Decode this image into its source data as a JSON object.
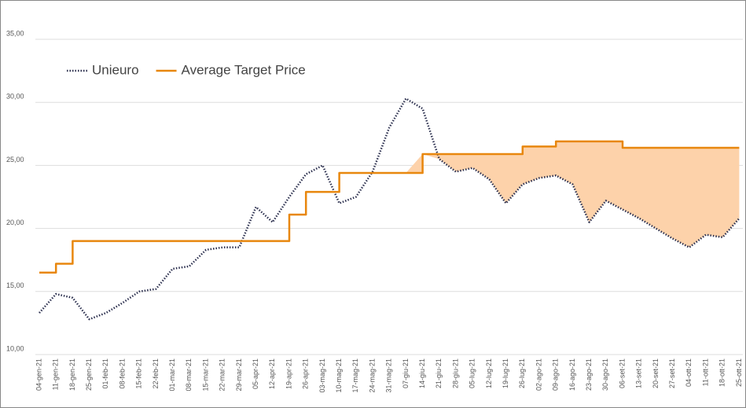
{
  "chart_data": {
    "type": "line",
    "categories": [
      "04-gen-21",
      "11-gen-21",
      "18-gen-21",
      "25-gen-21",
      "01-feb-21",
      "08-feb-21",
      "15-feb-21",
      "22-feb-21",
      "01-mar-21",
      "08-mar-21",
      "15-mar-21",
      "22-mar-21",
      "29-mar-21",
      "05-apr-21",
      "12-apr-21",
      "19-apr-21",
      "26-apr-21",
      "03-mag-21",
      "10-mag-21",
      "17-mag-21",
      "24-mag-21",
      "31-mag-21",
      "07-giu-21",
      "14-giu-21",
      "21-giu-21",
      "28-giu-21",
      "05-lug-21",
      "12-lug-21",
      "19-lug-21",
      "26-lug-21",
      "02-ago-21",
      "09-ago-21",
      "16-ago-21",
      "23-ago-21",
      "30-ago-21",
      "06-set-21",
      "13-set-21",
      "20-set-21",
      "27-set-21",
      "04-ott-21",
      "11-ott-21",
      "18-ott-21",
      "25-ott-21"
    ],
    "series": [
      {
        "name": "Unieuro",
        "color": "#2b2f4e",
        "style": "dotted",
        "values": [
          13.3,
          14.8,
          14.5,
          12.8,
          13.3,
          14.1,
          15.0,
          15.2,
          16.8,
          17.0,
          18.3,
          18.5,
          18.5,
          21.7,
          20.5,
          22.5,
          24.3,
          25.0,
          22.0,
          22.5,
          24.5,
          28.0,
          30.3,
          29.5,
          25.5,
          24.5,
          24.8,
          23.9,
          22.0,
          23.5,
          24.0,
          24.2,
          23.5,
          20.5,
          22.2,
          21.5,
          20.8,
          20.0,
          19.2,
          18.5,
          19.5,
          19.3,
          20.8
        ]
      },
      {
        "name": "Average Target Price",
        "color": "#e8870e",
        "style": "step",
        "values": [
          16.5,
          17.2,
          19.0,
          19.0,
          19.0,
          19.0,
          19.0,
          19.0,
          19.0,
          19.0,
          19.0,
          19.0,
          19.0,
          19.0,
          19.0,
          21.1,
          22.9,
          22.9,
          24.4,
          24.4,
          24.4,
          24.4,
          24.4,
          25.9,
          25.9,
          25.9,
          25.9,
          25.9,
          25.9,
          26.5,
          26.5,
          26.9,
          26.9,
          26.9,
          26.9,
          26.4,
          26.4,
          26.4,
          26.4,
          26.4,
          26.4,
          26.4,
          26.4
        ]
      }
    ],
    "fill_color": "#fdd2aa",
    "ylim": [
      10,
      35
    ],
    "yticks": [
      {
        "value": 10,
        "label": "10,00"
      },
      {
        "value": 15,
        "label": "15,00"
      },
      {
        "value": 20,
        "label": "20,00"
      },
      {
        "value": 25,
        "label": "25,00"
      },
      {
        "value": 30,
        "label": "30,00"
      },
      {
        "value": 35,
        "label": "35,00"
      }
    ],
    "grid": true
  }
}
